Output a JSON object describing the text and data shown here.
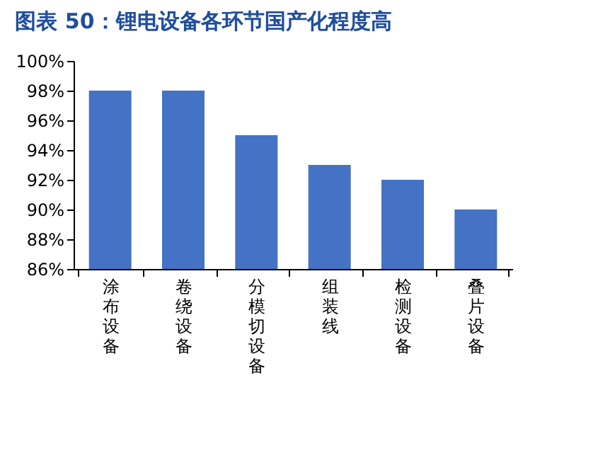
{
  "chart_data": {
    "type": "bar",
    "title": "图表 50：锂电设备各环节国产化程度高",
    "categories": [
      "涂布设备",
      "卷绕设备",
      "分模切设备",
      "组装线",
      "检测设备",
      "叠片设备"
    ],
    "values": [
      98,
      98,
      95,
      93,
      92,
      90
    ],
    "color": "#4472c4",
    "ylim": [
      86,
      100
    ],
    "yticks": [
      {
        "value": 86,
        "label": "86%"
      },
      {
        "value": 88,
        "label": "88%"
      },
      {
        "value": 90,
        "label": "90%"
      },
      {
        "value": 92,
        "label": "92%"
      },
      {
        "value": 94,
        "label": "94%"
      },
      {
        "value": 96,
        "label": "96%"
      },
      {
        "value": 98,
        "label": "98%"
      },
      {
        "value": 100,
        "label": "100%"
      }
    ],
    "grid": false
  }
}
